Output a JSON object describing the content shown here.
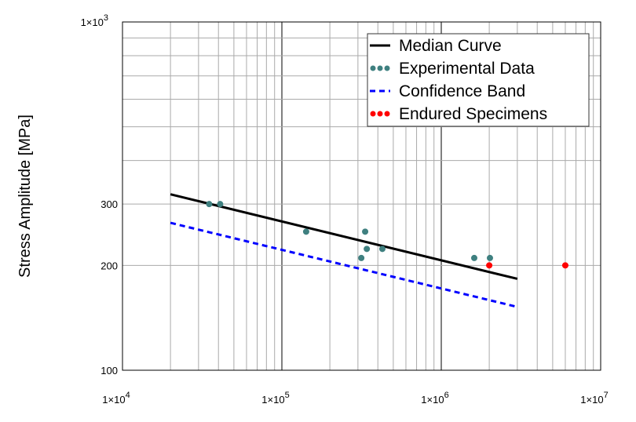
{
  "chart_data": {
    "type": "scatter",
    "title": "",
    "xlabel": "",
    "ylabel": "Stress Amplitude [MPa]",
    "xscale": "log",
    "yscale": "log",
    "xlim": [
      10000,
      10000000
    ],
    "ylim": [
      100,
      1000
    ],
    "grid": true,
    "legend_position": "top-right",
    "x_ticks": [
      {
        "value": 10000,
        "mant": "1",
        "exp": "4"
      },
      {
        "value": 100000,
        "mant": "1",
        "exp": "5"
      },
      {
        "value": 1000000,
        "mant": "1",
        "exp": "6"
      },
      {
        "value": 10000000,
        "mant": "1",
        "exp": "7"
      }
    ],
    "y_ticks": [
      {
        "value": 100,
        "label": "100"
      },
      {
        "value": 200,
        "label": "200"
      },
      {
        "value": 300,
        "label": "300"
      },
      {
        "value": 1000,
        "label": "1×10",
        "exp": "3"
      }
    ],
    "series": [
      {
        "name": "Median Curve",
        "kind": "line",
        "color": "#000000",
        "x": [
          20000,
          3000000
        ],
        "y": [
          320,
          183
        ]
      },
      {
        "name": "Experimental Data",
        "kind": "points",
        "color": "#3f8080",
        "x": [
          35000,
          41000,
          142000,
          333000,
          341000,
          315000,
          427000,
          1610000,
          2020000
        ],
        "y": [
          300,
          300,
          250,
          250,
          223,
          210,
          223,
          210,
          210
        ]
      },
      {
        "name": "Confidence Band",
        "kind": "dashed",
        "color": "#0000ff",
        "x": [
          20000,
          3000000
        ],
        "y": [
          265,
          152
        ]
      },
      {
        "name": "Endured Specimens",
        "kind": "points",
        "color": "#ff0000",
        "x": [
          2000000,
          6000000
        ],
        "y": [
          200,
          200
        ]
      }
    ]
  }
}
